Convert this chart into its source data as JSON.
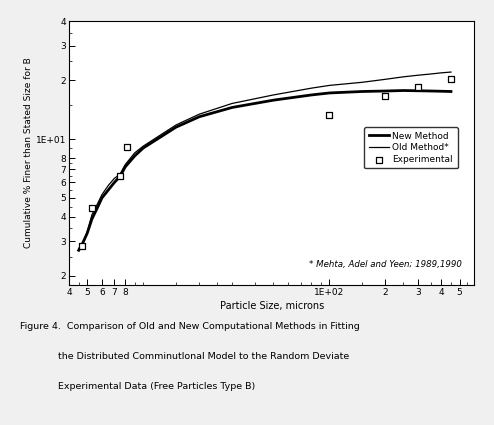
{
  "new_smooth_x": [
    4.5,
    4.7,
    5.0,
    5.3,
    5.7,
    6.0,
    6.5,
    7.0,
    7.5,
    8.0,
    9.0,
    10,
    15,
    20,
    30,
    50,
    80,
    100,
    150,
    200,
    250,
    300,
    350,
    400,
    450
  ],
  "new_smooth_y": [
    2.7,
    2.9,
    3.3,
    3.9,
    4.5,
    5.0,
    5.5,
    6.0,
    6.45,
    7.2,
    8.2,
    9.0,
    11.5,
    13.0,
    14.5,
    15.8,
    16.8,
    17.2,
    17.5,
    17.6,
    17.7,
    17.65,
    17.6,
    17.55,
    17.5
  ],
  "old_smooth_x": [
    4.5,
    4.7,
    5.0,
    5.3,
    5.7,
    6.0,
    6.5,
    7.0,
    7.5,
    8.0,
    9.0,
    10,
    15,
    20,
    30,
    50,
    80,
    100,
    150,
    200,
    250,
    300,
    350,
    400,
    450
  ],
  "old_smooth_y": [
    2.75,
    2.9,
    3.35,
    4.1,
    4.7,
    5.2,
    5.8,
    6.3,
    6.6,
    7.4,
    8.5,
    9.2,
    11.8,
    13.4,
    15.2,
    16.8,
    18.2,
    18.8,
    19.5,
    20.2,
    20.8,
    21.2,
    21.5,
    21.8,
    22.0
  ],
  "exp_x": [
    4.7,
    5.3,
    7.5,
    8.2,
    100,
    200,
    300,
    450
  ],
  "exp_y": [
    2.85,
    4.45,
    6.5,
    9.1,
    13.3,
    16.5,
    18.5,
    20.2
  ],
  "xlabel": "Particle Size, microns",
  "ylabel": "Cumulative % Finer than Stated Size for B",
  "xlim_low": 4.0,
  "xlim_high": 600,
  "ylim_low": 1.8,
  "ylim_high": 40,
  "x_major_ticks": [
    4,
    5,
    6,
    7,
    8,
    100,
    200,
    300,
    400,
    500
  ],
  "x_major_labels": [
    "4",
    "5",
    "6",
    "7",
    "8",
    "1E+02",
    "2",
    "3",
    "4",
    "5"
  ],
  "x_minor_ticks": [
    4.5,
    9,
    10,
    15,
    20,
    25,
    30,
    40,
    50,
    60,
    70,
    80,
    90,
    150,
    250,
    350,
    450,
    550
  ],
  "y_major_ticks": [
    2,
    3,
    4,
    5,
    6,
    7,
    8,
    10,
    20,
    30,
    40
  ],
  "y_major_labels": [
    "2",
    "3",
    "4",
    "5",
    "6",
    "7",
    "8",
    "1E+01",
    "2",
    "3",
    "4"
  ],
  "y_minor_ticks": [
    2.5,
    3.5,
    4.5,
    5.5,
    6.5,
    7.5,
    9,
    15,
    25,
    35
  ],
  "footnote": "* Mehta, Adel and Yeen; 1989,1990",
  "caption_line1": "Figure 4.  Comparison of Old and New Computational Methods in Fitting",
  "caption_line2": "   the Distributed Comminutlonal Model to the Random Deviate",
  "caption_line3": "   Experimental Data (Free Particles Type B)",
  "legend_new": "New Method",
  "legend_old": "Old Method*",
  "legend_exp": "Experimental",
  "bg_color": "#f0f0f0",
  "plot_bg": "#ffffff",
  "line_color": "#000000"
}
